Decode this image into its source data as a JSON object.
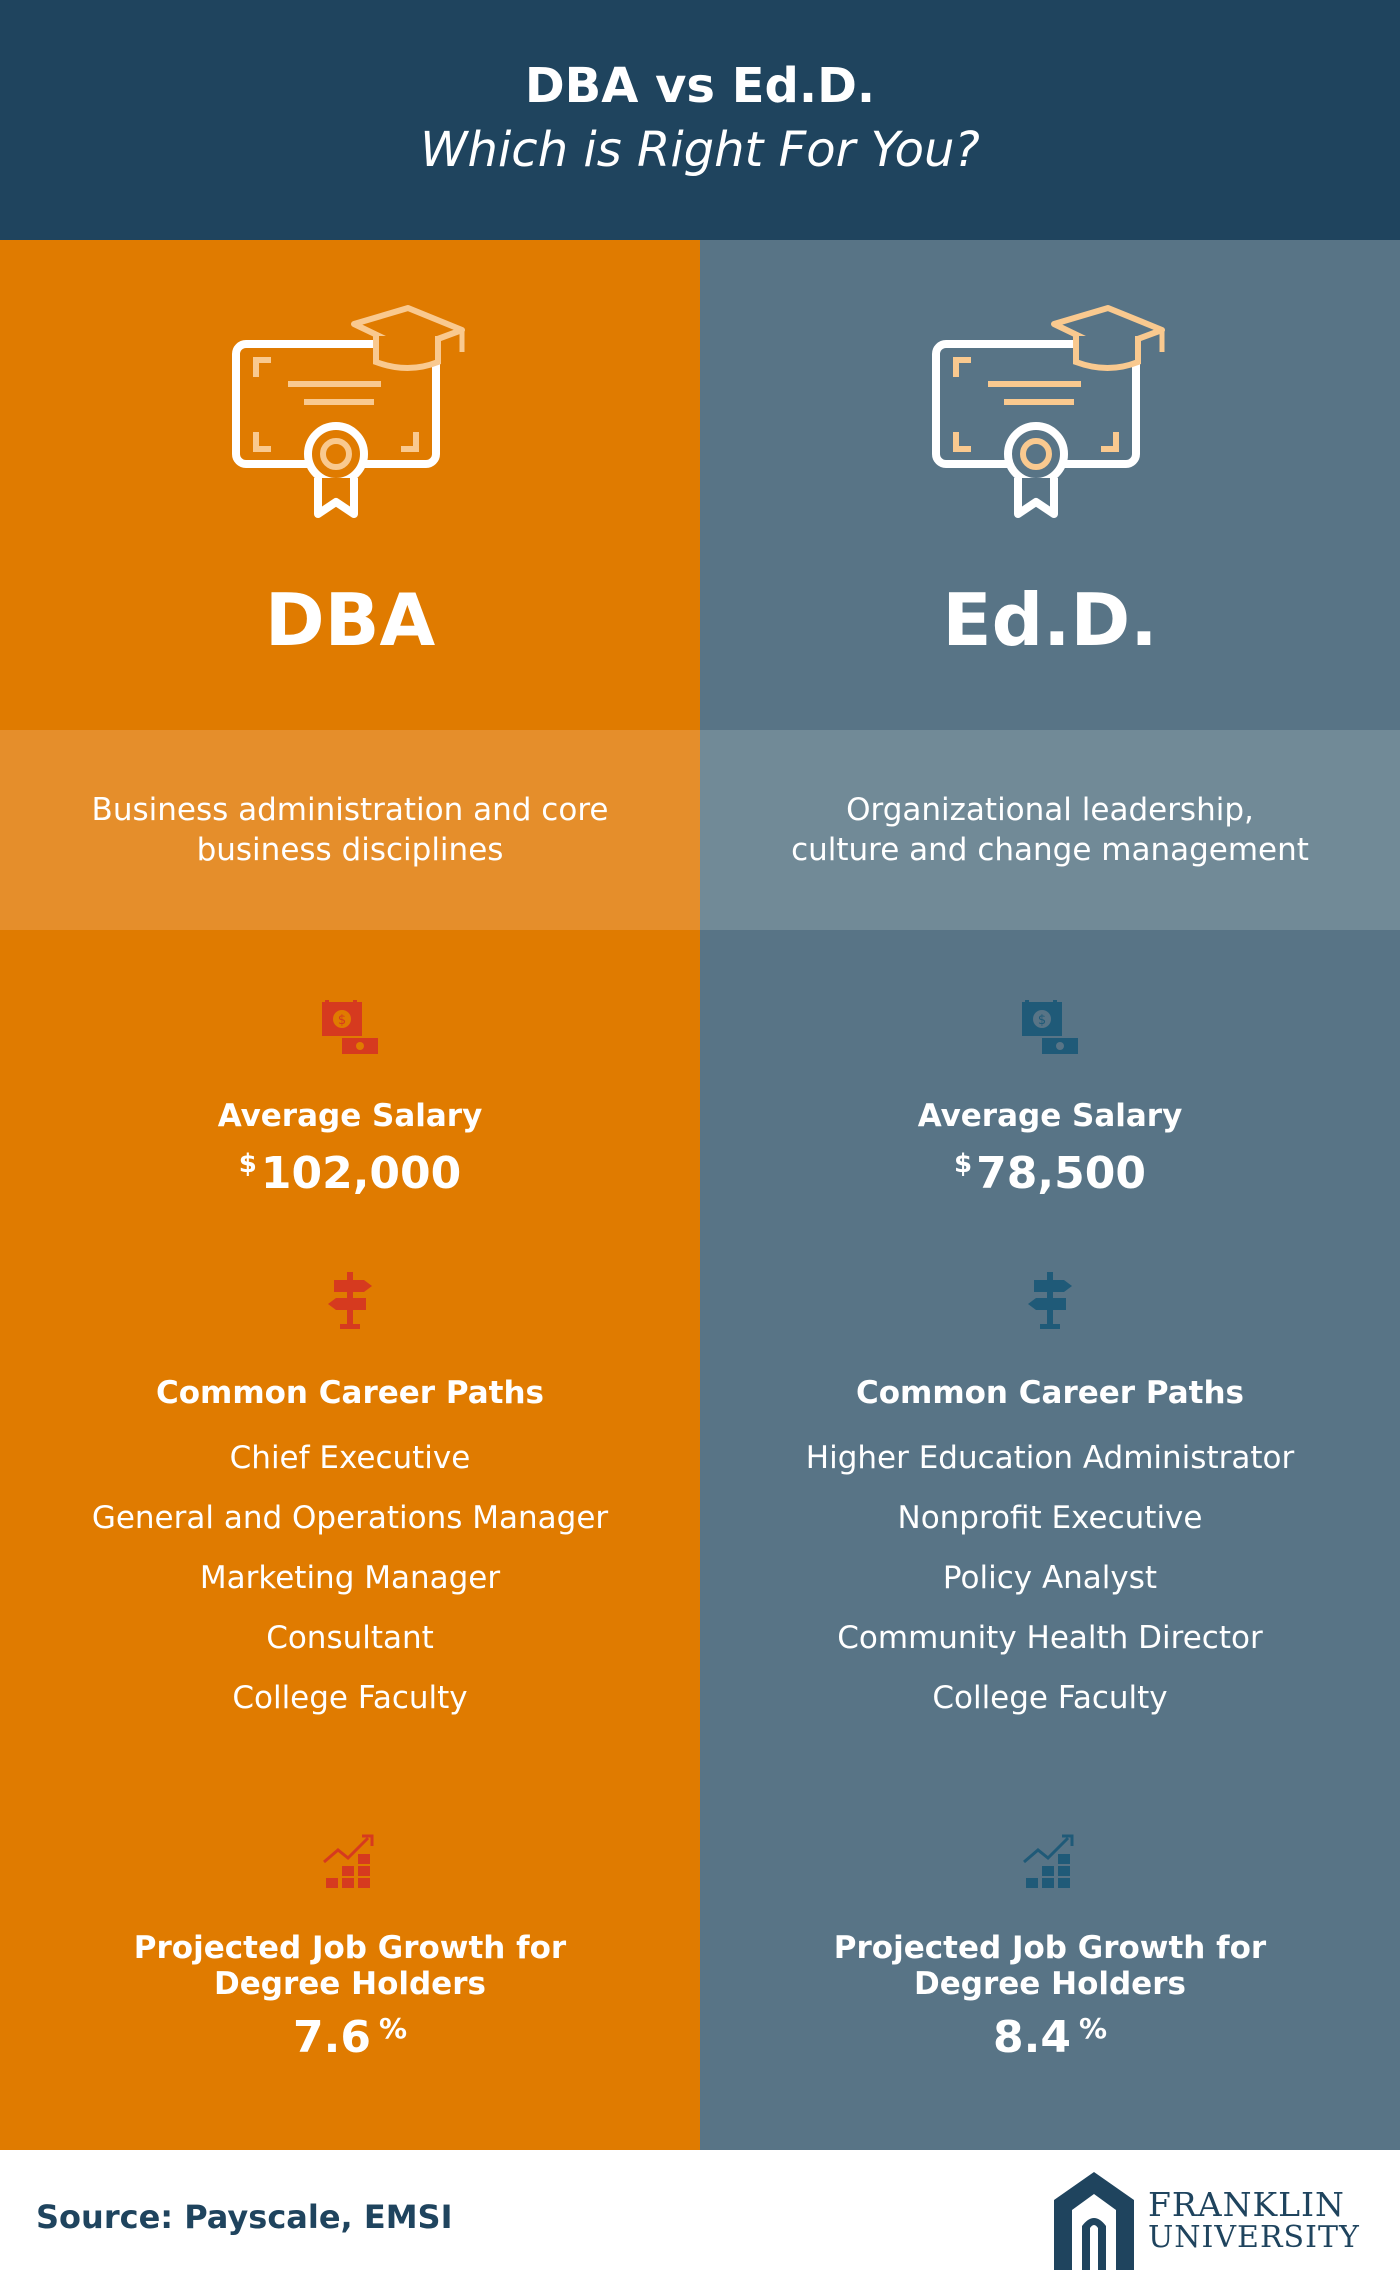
{
  "header": {
    "title": "DBA vs Ed.D.",
    "subtitle": "Which is Right For You?"
  },
  "columns": [
    {
      "degree": "DBA",
      "focus": "Business administration and core business disciplines",
      "salary_label": "Average Salary",
      "salary_currency": "$",
      "salary_value": "102,000",
      "careers_label": "Common Career Paths",
      "careers": [
        "Chief Executive",
        "General and Operations Manager",
        "Marketing Manager",
        "Consultant",
        "College Faculty"
      ],
      "growth_label": "Projected Job Growth for Degree Holders",
      "growth_value": "7.6",
      "growth_unit": "%",
      "icon_color": "#d63a1f",
      "bg_color": "#e07b00"
    },
    {
      "degree": "Ed.D.",
      "focus": "Organizational leadership, culture and change management",
      "salary_label": "Average Salary",
      "salary_currency": "$",
      "salary_value": "78,500",
      "careers_label": "Common Career Paths",
      "careers": [
        "Higher Education Administrator",
        "Nonprofit Executive",
        "Policy Analyst",
        "Community Health Director",
        "College Faculty"
      ],
      "growth_label": "Projected Job Growth for Degree Holders",
      "growth_value": "8.4",
      "growth_unit": "%",
      "icon_color": "#1f5a78",
      "bg_color": "#587486"
    }
  ],
  "footer": {
    "source": "Source: Payscale, EMSI",
    "logo_line1": "FRANKLIN",
    "logo_line2": "UNIVERSITY"
  }
}
